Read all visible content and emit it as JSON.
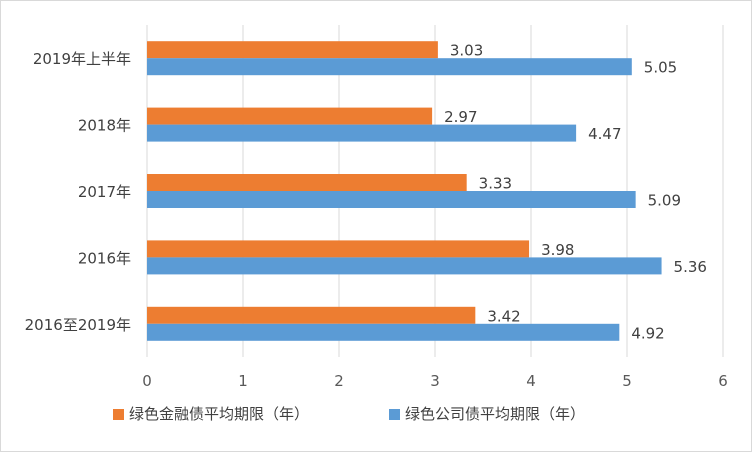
{
  "chart_data": {
    "type": "bar",
    "orientation": "horizontal",
    "categories": [
      "2019年上半年",
      "2018年",
      "2017年",
      "2016年",
      "2016至2019年"
    ],
    "series": [
      {
        "name": "绿色金融债平均期限（年）",
        "color": "#ed7d31",
        "values": [
          3.03,
          2.97,
          3.33,
          3.98,
          3.42
        ]
      },
      {
        "name": "绿色公司债平均期限（年）",
        "color": "#5b9bd5",
        "values": [
          5.05,
          4.47,
          5.09,
          5.36,
          4.92
        ]
      }
    ],
    "xlim": [
      0,
      6
    ],
    "xticks": [
      "0",
      "1",
      "2",
      "3",
      "4",
      "5",
      "6"
    ],
    "grid": true,
    "legend_position": "bottom",
    "title": "",
    "xlabel": "",
    "ylabel": ""
  }
}
